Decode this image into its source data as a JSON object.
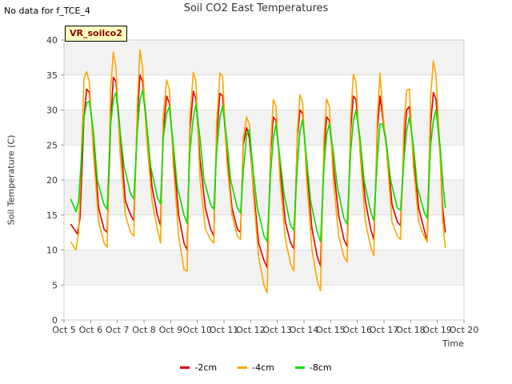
{
  "page": {
    "no_data_note": "No data for f_TCE_4",
    "site_badge": "VR_soilco2"
  },
  "chart_data": {
    "type": "line",
    "title": "Soil CO2 East Temperatures",
    "xlabel": "Time",
    "ylabel": "Soil Temperature (C)",
    "xlim": [
      5,
      20
    ],
    "ylim": [
      0,
      40
    ],
    "x_ticks": [
      5,
      6,
      7,
      8,
      9,
      10,
      11,
      12,
      13,
      14,
      15,
      16,
      17,
      18,
      19,
      20
    ],
    "x_tick_labels": [
      "Oct 5",
      "Oct 6",
      "Oct 7",
      "Oct 8",
      "Oct 9",
      "Oct 10",
      "Oct 11",
      "Oct 12",
      "Oct 13",
      "Oct 14",
      "Oct 15",
      "Oct 16",
      "Oct 17",
      "Oct 18",
      "Oct 19",
      "Oct 20"
    ],
    "y_ticks": [
      0,
      5,
      10,
      15,
      20,
      25,
      30,
      35,
      40
    ],
    "grid": true,
    "legend_position": "bottom-center",
    "series": [
      {
        "name": "-2cm",
        "color": "#e00000",
        "points": [
          [
            5.25,
            13.7
          ],
          [
            5.5,
            12.3
          ],
          [
            5.6,
            14.5
          ],
          [
            5.75,
            29
          ],
          [
            5.85,
            33
          ],
          [
            5.95,
            32.5
          ],
          [
            6.1,
            26
          ],
          [
            6.3,
            16
          ],
          [
            6.5,
            13
          ],
          [
            6.62,
            12.5
          ],
          [
            6.75,
            28
          ],
          [
            6.85,
            34.7
          ],
          [
            6.95,
            34
          ],
          [
            7.1,
            27
          ],
          [
            7.3,
            17
          ],
          [
            7.5,
            15
          ],
          [
            7.62,
            14.2
          ],
          [
            7.75,
            29
          ],
          [
            7.85,
            35
          ],
          [
            7.95,
            34
          ],
          [
            8.1,
            28
          ],
          [
            8.3,
            19
          ],
          [
            8.5,
            15
          ],
          [
            8.62,
            13.5
          ],
          [
            8.72,
            27
          ],
          [
            8.85,
            32
          ],
          [
            8.95,
            31
          ],
          [
            9.1,
            24
          ],
          [
            9.3,
            15
          ],
          [
            9.5,
            11
          ],
          [
            9.62,
            10
          ],
          [
            9.72,
            27
          ],
          [
            9.85,
            32.7
          ],
          [
            9.95,
            31.5
          ],
          [
            10.1,
            23
          ],
          [
            10.3,
            16
          ],
          [
            10.5,
            13
          ],
          [
            10.62,
            12
          ],
          [
            10.72,
            26
          ],
          [
            10.85,
            32.4
          ],
          [
            10.95,
            32
          ],
          [
            11.1,
            24
          ],
          [
            11.3,
            16
          ],
          [
            11.5,
            13
          ],
          [
            11.62,
            12.5
          ],
          [
            11.72,
            25
          ],
          [
            11.85,
            27.5
          ],
          [
            11.95,
            26
          ],
          [
            12.1,
            19
          ],
          [
            12.3,
            11
          ],
          [
            12.5,
            8.5
          ],
          [
            12.62,
            7.5
          ],
          [
            12.75,
            24
          ],
          [
            12.85,
            29
          ],
          [
            12.95,
            28.5
          ],
          [
            13.1,
            22
          ],
          [
            13.3,
            14
          ],
          [
            13.5,
            11
          ],
          [
            13.62,
            10.2
          ],
          [
            13.75,
            26
          ],
          [
            13.85,
            30
          ],
          [
            13.95,
            29.5
          ],
          [
            14.1,
            22
          ],
          [
            14.3,
            13
          ],
          [
            14.5,
            9
          ],
          [
            14.62,
            7.7
          ],
          [
            14.75,
            24
          ],
          [
            14.85,
            29
          ],
          [
            14.95,
            28.5
          ],
          [
            15.1,
            22
          ],
          [
            15.3,
            15
          ],
          [
            15.5,
            11.5
          ],
          [
            15.62,
            10.5
          ],
          [
            15.75,
            27
          ],
          [
            15.85,
            32
          ],
          [
            15.95,
            31.5
          ],
          [
            16.1,
            25
          ],
          [
            16.3,
            17
          ],
          [
            16.5,
            13
          ],
          [
            16.62,
            11.5
          ],
          [
            16.75,
            27
          ],
          [
            16.85,
            32
          ],
          [
            16.95,
            29
          ],
          [
            17.1,
            25
          ],
          [
            17.3,
            16.5
          ],
          [
            17.5,
            14
          ],
          [
            17.62,
            13.5
          ],
          [
            17.75,
            25
          ],
          [
            17.85,
            30
          ],
          [
            17.95,
            30.5
          ],
          [
            18.1,
            24
          ],
          [
            18.3,
            16
          ],
          [
            18.5,
            13
          ],
          [
            18.62,
            11.2
          ],
          [
            18.75,
            28
          ],
          [
            18.85,
            32.5
          ],
          [
            18.95,
            31.5
          ],
          [
            19.1,
            24
          ],
          [
            19.2,
            16
          ],
          [
            19.3,
            12.5
          ]
        ]
      },
      {
        "name": "-4cm",
        "color": "#ffa500",
        "points": [
          [
            5.25,
            11.2
          ],
          [
            5.45,
            10
          ],
          [
            5.55,
            12.5
          ],
          [
            5.75,
            34.5
          ],
          [
            5.85,
            35.5
          ],
          [
            5.95,
            34
          ],
          [
            6.1,
            24
          ],
          [
            6.3,
            14
          ],
          [
            6.5,
            11
          ],
          [
            6.62,
            10.4
          ],
          [
            6.75,
            33
          ],
          [
            6.85,
            38.3
          ],
          [
            6.95,
            36
          ],
          [
            7.1,
            24
          ],
          [
            7.3,
            15
          ],
          [
            7.5,
            12.5
          ],
          [
            7.62,
            12
          ],
          [
            7.75,
            31
          ],
          [
            7.85,
            38.6
          ],
          [
            7.95,
            36
          ],
          [
            8.1,
            26
          ],
          [
            8.3,
            17
          ],
          [
            8.5,
            13
          ],
          [
            8.62,
            11
          ],
          [
            8.72,
            29
          ],
          [
            8.85,
            34.3
          ],
          [
            8.95,
            33
          ],
          [
            9.1,
            22
          ],
          [
            9.3,
            12
          ],
          [
            9.5,
            7.2
          ],
          [
            9.62,
            7
          ],
          [
            9.72,
            29
          ],
          [
            9.85,
            35.4
          ],
          [
            9.95,
            34
          ],
          [
            10.1,
            20
          ],
          [
            10.3,
            13
          ],
          [
            10.5,
            11.5
          ],
          [
            10.62,
            11
          ],
          [
            10.72,
            28
          ],
          [
            10.85,
            35.3
          ],
          [
            10.95,
            34.8
          ],
          [
            11.1,
            23
          ],
          [
            11.3,
            15
          ],
          [
            11.5,
            12
          ],
          [
            11.62,
            11.5
          ],
          [
            11.72,
            26
          ],
          [
            11.85,
            29
          ],
          [
            11.95,
            28
          ],
          [
            12.1,
            18
          ],
          [
            12.3,
            9
          ],
          [
            12.5,
            5
          ],
          [
            12.62,
            3.9
          ],
          [
            12.75,
            25
          ],
          [
            12.85,
            31.5
          ],
          [
            12.95,
            30.5
          ],
          [
            13.1,
            20
          ],
          [
            13.3,
            11.5
          ],
          [
            13.5,
            8
          ],
          [
            13.62,
            7
          ],
          [
            13.75,
            27
          ],
          [
            13.85,
            32.2
          ],
          [
            13.95,
            31
          ],
          [
            14.1,
            20
          ],
          [
            14.3,
            10
          ],
          [
            14.5,
            5.5
          ],
          [
            14.62,
            4.2
          ],
          [
            14.75,
            26
          ],
          [
            14.85,
            31.6
          ],
          [
            14.95,
            30.5
          ],
          [
            15.1,
            20
          ],
          [
            15.3,
            12
          ],
          [
            15.5,
            9
          ],
          [
            15.62,
            8.3
          ],
          [
            15.75,
            29
          ],
          [
            15.85,
            35.1
          ],
          [
            15.95,
            34
          ],
          [
            16.1,
            24
          ],
          [
            16.3,
            14
          ],
          [
            16.5,
            10.5
          ],
          [
            16.62,
            9.2
          ],
          [
            16.75,
            29
          ],
          [
            16.85,
            35.3
          ],
          [
            16.95,
            30
          ],
          [
            17.1,
            24
          ],
          [
            17.3,
            14
          ],
          [
            17.5,
            12
          ],
          [
            17.62,
            11.5
          ],
          [
            17.75,
            28
          ],
          [
            17.85,
            32.8
          ],
          [
            17.95,
            33
          ],
          [
            18.1,
            22
          ],
          [
            18.3,
            14
          ],
          [
            18.5,
            12
          ],
          [
            18.62,
            11.2
          ],
          [
            18.75,
            32
          ],
          [
            18.85,
            37
          ],
          [
            18.95,
            35
          ],
          [
            19.1,
            24
          ],
          [
            19.2,
            14
          ],
          [
            19.3,
            10.3
          ]
        ]
      },
      {
        "name": "-8cm",
        "color": "#00e000",
        "points": [
          [
            5.25,
            17.3
          ],
          [
            5.45,
            15.5
          ],
          [
            5.55,
            17
          ],
          [
            5.75,
            29
          ],
          [
            5.85,
            31
          ],
          [
            5.95,
            31.3
          ],
          [
            6.1,
            27
          ],
          [
            6.25,
            20
          ],
          [
            6.5,
            16.5
          ],
          [
            6.62,
            15.8
          ],
          [
            6.75,
            28
          ],
          [
            6.85,
            31.5
          ],
          [
            6.95,
            32.5
          ],
          [
            7.1,
            27
          ],
          [
            7.25,
            22
          ],
          [
            7.5,
            18
          ],
          [
            7.62,
            17.3
          ],
          [
            7.75,
            27
          ],
          [
            7.85,
            31.5
          ],
          [
            7.95,
            32.8
          ],
          [
            8.1,
            28
          ],
          [
            8.25,
            22
          ],
          [
            8.5,
            17.5
          ],
          [
            8.62,
            16.6
          ],
          [
            8.72,
            26
          ],
          [
            8.85,
            29.5
          ],
          [
            8.95,
            30.5
          ],
          [
            9.1,
            25
          ],
          [
            9.25,
            19
          ],
          [
            9.5,
            15
          ],
          [
            9.62,
            13.8
          ],
          [
            9.72,
            24
          ],
          [
            9.85,
            29
          ],
          [
            9.95,
            30.8
          ],
          [
            10.1,
            26
          ],
          [
            10.25,
            20
          ],
          [
            10.5,
            16.5
          ],
          [
            10.62,
            15.8
          ],
          [
            10.72,
            24
          ],
          [
            10.85,
            29
          ],
          [
            10.95,
            30.6
          ],
          [
            11.1,
            26
          ],
          [
            11.25,
            20
          ],
          [
            11.5,
            16
          ],
          [
            11.62,
            15.3
          ],
          [
            11.72,
            21
          ],
          [
            11.85,
            26.5
          ],
          [
            11.95,
            27.2
          ],
          [
            12.1,
            21
          ],
          [
            12.25,
            16
          ],
          [
            12.5,
            12
          ],
          [
            12.62,
            11.2
          ],
          [
            12.75,
            21
          ],
          [
            12.85,
            26
          ],
          [
            12.95,
            28
          ],
          [
            13.1,
            23
          ],
          [
            13.25,
            18
          ],
          [
            13.5,
            13.5
          ],
          [
            13.62,
            12.8
          ],
          [
            13.75,
            22
          ],
          [
            13.85,
            27
          ],
          [
            13.95,
            28.6
          ],
          [
            14.1,
            23
          ],
          [
            14.25,
            17
          ],
          [
            14.5,
            12.5
          ],
          [
            14.62,
            11.2
          ],
          [
            14.75,
            22
          ],
          [
            14.85,
            26.5
          ],
          [
            14.95,
            28
          ],
          [
            15.1,
            24
          ],
          [
            15.25,
            19
          ],
          [
            15.5,
            14.5
          ],
          [
            15.62,
            13.7
          ],
          [
            15.75,
            24
          ],
          [
            15.85,
            28.5
          ],
          [
            15.95,
            30
          ],
          [
            16.1,
            26
          ],
          [
            16.25,
            20
          ],
          [
            16.5,
            15.5
          ],
          [
            16.62,
            14.2
          ],
          [
            16.75,
            23
          ],
          [
            16.85,
            28
          ],
          [
            16.95,
            28
          ],
          [
            17.1,
            25
          ],
          [
            17.25,
            20
          ],
          [
            17.5,
            16
          ],
          [
            17.62,
            15.7
          ],
          [
            17.75,
            23
          ],
          [
            17.85,
            27
          ],
          [
            17.95,
            29
          ],
          [
            18.1,
            25
          ],
          [
            18.25,
            19
          ],
          [
            18.5,
            15.5
          ],
          [
            18.62,
            14.5
          ],
          [
            18.75,
            25
          ],
          [
            18.85,
            28.5
          ],
          [
            18.95,
            30
          ],
          [
            19.1,
            25
          ],
          [
            19.2,
            20
          ],
          [
            19.3,
            16
          ]
        ]
      }
    ]
  }
}
